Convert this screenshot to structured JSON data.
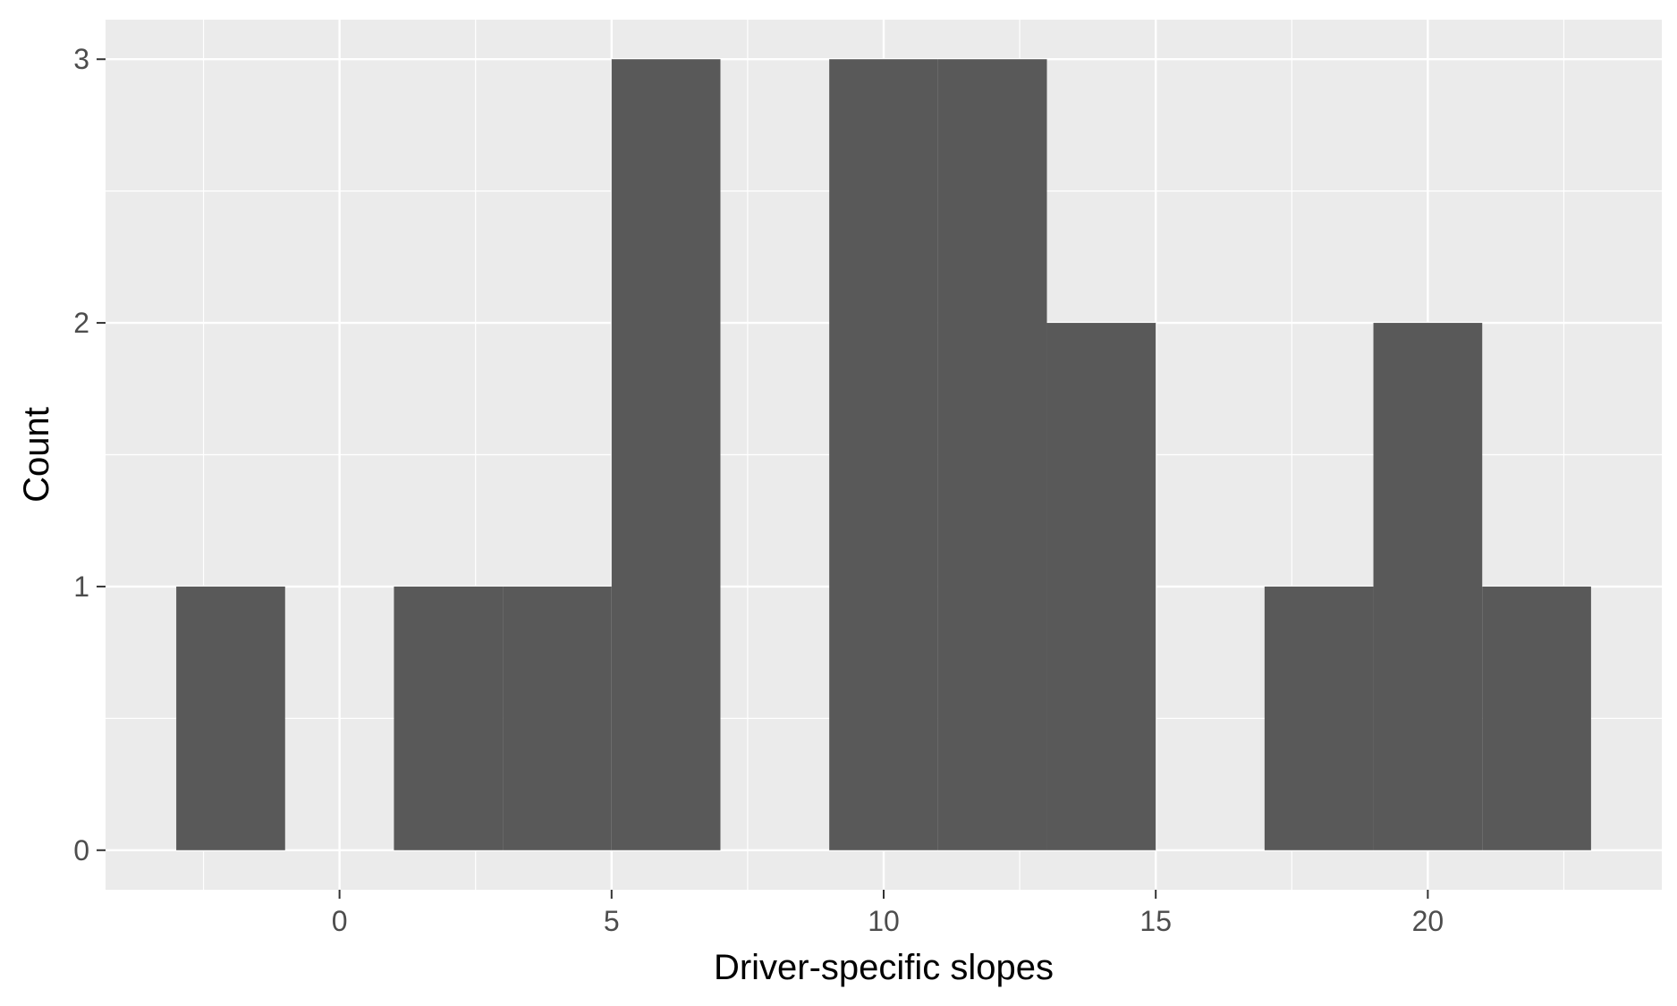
{
  "chart_data": {
    "type": "bar",
    "subtype": "histogram",
    "title": "",
    "xlabel": "Driver-specific slopes",
    "ylabel": "Count",
    "xlim": [
      -4.3,
      24.3
    ],
    "ylim": [
      0,
      3.15
    ],
    "x_ticks": [
      0,
      5,
      10,
      15,
      20
    ],
    "x_tick_labels": [
      "0",
      "5",
      "10",
      "15",
      "20"
    ],
    "y_ticks": [
      0,
      1,
      2,
      3
    ],
    "y_tick_labels": [
      "0",
      "1",
      "2",
      "3"
    ],
    "bin_width": 2,
    "bins": [
      {
        "x0": -3,
        "x1": -1,
        "count": 1
      },
      {
        "x0": -1,
        "x1": 1,
        "count": 0
      },
      {
        "x0": 1,
        "x1": 3,
        "count": 1
      },
      {
        "x0": 3,
        "x1": 5,
        "count": 1
      },
      {
        "x0": 5,
        "x1": 7,
        "count": 3
      },
      {
        "x0": 7,
        "x1": 9,
        "count": 0
      },
      {
        "x0": 9,
        "x1": 11,
        "count": 3
      },
      {
        "x0": 11,
        "x1": 13,
        "count": 3
      },
      {
        "x0": 13,
        "x1": 15,
        "count": 2
      },
      {
        "x0": 15,
        "x1": 17,
        "count": 0
      },
      {
        "x0": 17,
        "x1": 19,
        "count": 1
      },
      {
        "x0": 19,
        "x1": 21,
        "count": 2
      },
      {
        "x0": 21,
        "x1": 23,
        "count": 1
      }
    ],
    "grid": true,
    "legend": "none",
    "colors": {
      "panel_background": "#ebebeb",
      "grid_major": "#ffffff",
      "grid_minor": "#ffffff",
      "bar_fill": "#595959",
      "tick_text": "#4d4d4d",
      "axis_title_text": "#000000",
      "tick_mark": "#333333"
    }
  }
}
